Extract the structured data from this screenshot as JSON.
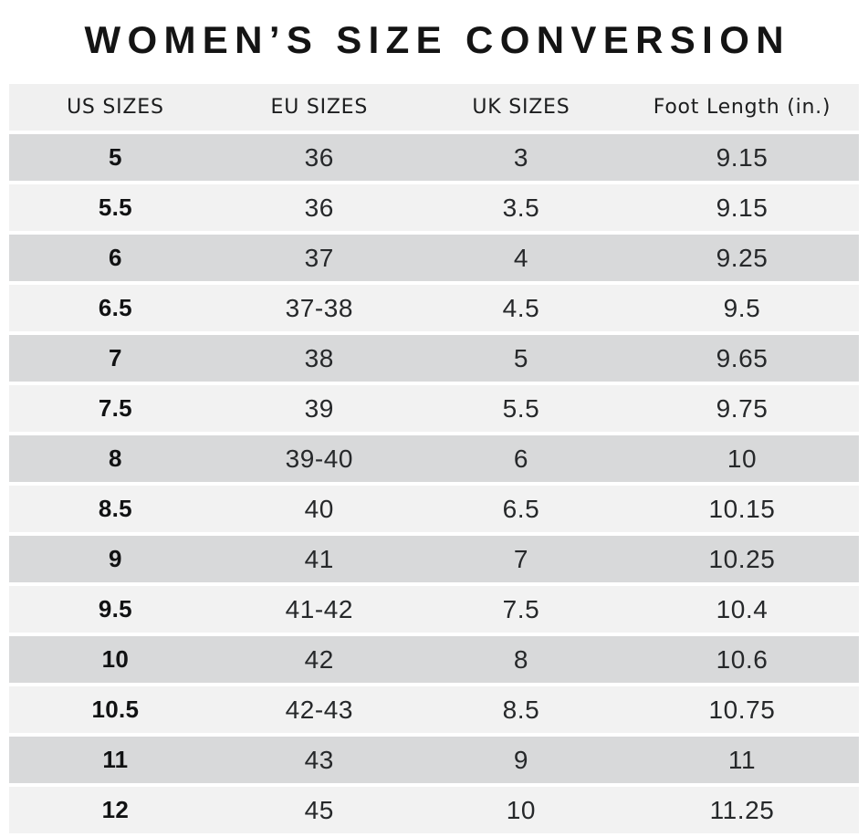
{
  "page": {
    "title": "WOMEN’S SIZE CONVERSION"
  },
  "colors": {
    "background": "#ffffff",
    "header_bg": "#f0f0f0",
    "row_dark": "#d8d9da",
    "row_light": "#f2f2f2",
    "title_text": "#141414",
    "body_text": "#26282a"
  },
  "chart_data": {
    "type": "table",
    "title": "WOMEN’S SIZE CONVERSION",
    "columns": [
      "US SIZES",
      "EU SIZES",
      "UK SIZES",
      "Foot Length (in.)"
    ],
    "rows": [
      [
        "5",
        "36",
        "3",
        "9.15"
      ],
      [
        "5.5",
        "36",
        "3.5",
        "9.15"
      ],
      [
        "6",
        "37",
        "4",
        "9.25"
      ],
      [
        "6.5",
        "37-38",
        "4.5",
        "9.5"
      ],
      [
        "7",
        "38",
        "5",
        "9.65"
      ],
      [
        "7.5",
        "39",
        "5.5",
        "9.75"
      ],
      [
        "8",
        "39-40",
        "6",
        "10"
      ],
      [
        "8.5",
        "40",
        "6.5",
        "10.15"
      ],
      [
        "9",
        "41",
        "7",
        "10.25"
      ],
      [
        "9.5",
        "41-42",
        "7.5",
        "10.4"
      ],
      [
        "10",
        "42",
        "8",
        "10.6"
      ],
      [
        "10.5",
        "42-43",
        "8.5",
        "10.75"
      ],
      [
        "11",
        "43",
        "9",
        "11"
      ],
      [
        "12",
        "45",
        "10",
        "11.25"
      ]
    ],
    "layout": {
      "striped": true,
      "stripe_order": "dark-first",
      "us_column_bold": true
    }
  }
}
